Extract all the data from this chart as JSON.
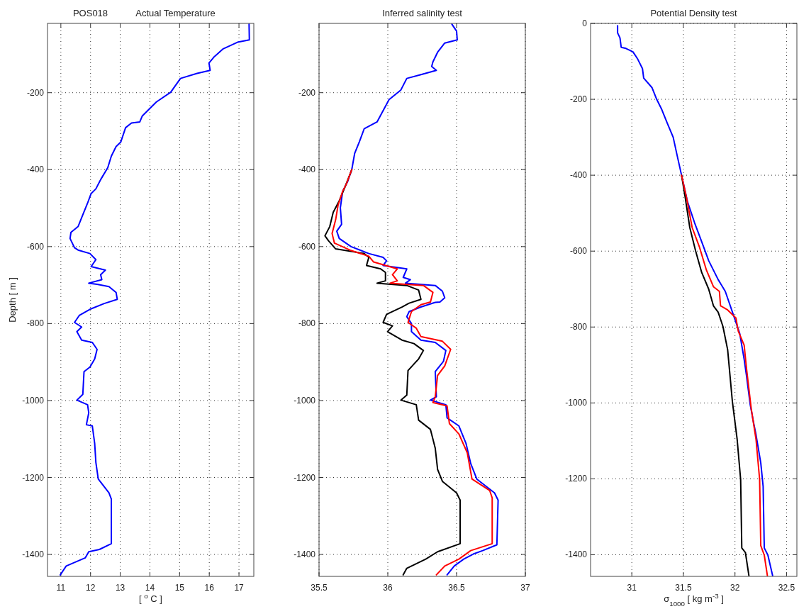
{
  "chart_data": [
    {
      "type": "line",
      "title": "Actual Temperature",
      "annotations": [
        "POS018"
      ],
      "xlabel": "[ $^{o}$ C ]",
      "ylabel": "Depth [ m ]",
      "xlim": [
        10.55,
        17.5
      ],
      "xticks": [
        11,
        12,
        13,
        14,
        15,
        16,
        17
      ],
      "ylim": [
        -1457,
        -20
      ],
      "yticks": [
        -1400,
        -1200,
        -1000,
        -800,
        -600,
        -400,
        -200
      ],
      "grid": true,
      "series": [
        {
          "color": "#0000ff",
          "x": [
            17.34,
            17.35,
            16.95,
            16.47,
            16.15,
            15.99,
            16.03,
            15.59,
            15.03,
            14.7,
            14.22,
            13.74,
            13.66,
            13.38,
            13.18,
            13.02,
            12.86,
            12.7,
            12.58,
            12.34,
            12.18,
            12.02,
            11.9,
            11.74,
            11.58,
            11.34,
            11.31,
            11.46,
            11.58,
            11.98,
            12.18,
            12.02,
            12.5,
            12.34,
            12.38,
            11.94,
            12.22,
            12.62,
            12.86,
            12.9,
            12.46,
            11.98,
            11.62,
            11.46,
            11.7,
            11.54,
            11.7,
            12.06,
            12.22,
            12.14,
            11.98,
            11.78,
            11.74,
            11.54,
            11.9,
            11.94,
            11.86,
            12.06,
            12.14,
            12.18,
            12.26,
            12.62,
            12.7,
            12.7,
            12.3,
            11.94,
            11.82,
            11.18,
            10.98
          ],
          "values": [
            -22,
            -63,
            -69,
            -86,
            -108,
            -123,
            -142,
            -150,
            -163,
            -199,
            -224,
            -261,
            -276,
            -279,
            -291,
            -328,
            -340,
            -365,
            -395,
            -426,
            -450,
            -462,
            -487,
            -517,
            -548,
            -563,
            -579,
            -603,
            -609,
            -618,
            -634,
            -652,
            -661,
            -673,
            -686,
            -695,
            -698,
            -704,
            -719,
            -737,
            -748,
            -763,
            -779,
            -797,
            -809,
            -821,
            -843,
            -849,
            -867,
            -892,
            -913,
            -925,
            -984,
            -999,
            -1011,
            -1032,
            -1063,
            -1066,
            -1112,
            -1161,
            -1204,
            -1240,
            -1256,
            -1372,
            -1387,
            -1393,
            -1409,
            -1430,
            -1453
          ]
        }
      ]
    },
    {
      "type": "line",
      "title": "Inferred salinity test",
      "xlim": [
        35.5,
        37
      ],
      "xticks": [
        35.5,
        36,
        36.5,
        37
      ],
      "ylim": [
        -1457,
        -20
      ],
      "yticks": [
        -1400,
        -1200,
        -1000,
        -800,
        -600,
        -400,
        -200
      ],
      "grid": true,
      "series": [
        {
          "color": "#0000ff",
          "x": [
            36.466,
            36.5,
            36.505,
            36.414,
            36.362,
            36.328,
            36.319,
            36.353,
            36.241,
            36.138,
            36.095,
            36.009,
            35.922,
            35.828,
            35.793,
            35.759,
            35.738,
            35.707,
            35.672,
            35.655,
            35.664,
            35.629,
            35.647,
            35.733,
            35.862,
            35.966,
            35.991,
            35.966,
            36.138,
            36.112,
            36.164,
            36.129,
            36.345,
            36.397,
            36.414,
            36.379,
            36.345,
            36.241,
            36.155,
            36.138,
            36.172,
            36.172,
            36.241,
            36.345,
            36.422,
            36.405,
            36.345,
            36.353,
            36.31,
            36.422,
            36.431,
            36.517,
            36.569,
            36.603,
            36.647,
            36.776,
            36.802,
            36.793,
            36.69,
            36.621,
            36.552,
            36.483,
            36.431
          ],
          "values": [
            -22,
            -40,
            -63,
            -71,
            -95,
            -120,
            -132,
            -142,
            -153,
            -163,
            -193,
            -218,
            -276,
            -294,
            -328,
            -358,
            -400,
            -432,
            -456,
            -499,
            -542,
            -560,
            -579,
            -600,
            -618,
            -628,
            -637,
            -649,
            -658,
            -680,
            -686,
            -695,
            -701,
            -716,
            -733,
            -744,
            -745,
            -757,
            -769,
            -782,
            -800,
            -821,
            -843,
            -849,
            -870,
            -898,
            -925,
            -990,
            -999,
            -1011,
            -1045,
            -1066,
            -1112,
            -1164,
            -1204,
            -1240,
            -1259,
            -1375,
            -1390,
            -1399,
            -1412,
            -1430,
            -1453
          ]
        },
        {
          "color": "#000000",
          "x": [
            35.738,
            35.69,
            35.647,
            35.603,
            35.578,
            35.543,
            35.569,
            35.621,
            35.828,
            35.862,
            35.845,
            35.948,
            35.983,
            35.983,
            35.922,
            36.138,
            36.224,
            36.241,
            36.155,
            36.103,
            35.991,
            35.966,
            36.034,
            35.998,
            36.103,
            36.19,
            36.259,
            36.224,
            36.147,
            36.138,
            36.095,
            36.207,
            36.224,
            36.31,
            36.345,
            36.362,
            36.397,
            36.5,
            36.526,
            36.526,
            36.362,
            36.276,
            36.138,
            36.112
          ],
          "values": [
            -400,
            -444,
            -481,
            -511,
            -548,
            -572,
            -585,
            -606,
            -618,
            -628,
            -649,
            -658,
            -667,
            -689,
            -695,
            -701,
            -713,
            -737,
            -747,
            -757,
            -776,
            -797,
            -806,
            -821,
            -843,
            -852,
            -870,
            -892,
            -922,
            -986,
            -999,
            -1011,
            -1051,
            -1075,
            -1124,
            -1179,
            -1210,
            -1240,
            -1259,
            -1372,
            -1393,
            -1412,
            -1436,
            -1453
          ]
        },
        {
          "color": "#ff0000",
          "x": [
            35.738,
            35.698,
            35.672,
            35.638,
            35.621,
            35.595,
            35.612,
            35.724,
            35.862,
            35.897,
            36.069,
            36.034,
            36.069,
            36.017,
            36.259,
            36.328,
            36.31,
            36.241,
            36.172,
            36.147,
            36.207,
            36.241,
            36.397,
            36.457,
            36.414,
            36.362,
            36.345,
            36.328,
            36.431,
            36.448,
            36.517,
            36.578,
            36.612,
            36.741,
            36.759,
            36.759,
            36.603,
            36.517,
            36.414,
            36.353
          ],
          "values": [
            -400,
            -438,
            -456,
            -493,
            -530,
            -566,
            -591,
            -609,
            -625,
            -640,
            -658,
            -673,
            -689,
            -695,
            -701,
            -719,
            -744,
            -751,
            -769,
            -797,
            -812,
            -834,
            -846,
            -867,
            -910,
            -935,
            -990,
            -1005,
            -1014,
            -1060,
            -1087,
            -1136,
            -1204,
            -1234,
            -1253,
            -1372,
            -1390,
            -1412,
            -1430,
            -1453
          ]
        }
      ]
    },
    {
      "type": "line",
      "title": "Potential Density test",
      "xlabel": "σ$_{1000}$ [ kg m$^{-3}$ ]",
      "xlim": [
        30.6,
        32.6
      ],
      "xticks": [
        31,
        31.5,
        32,
        32.5
      ],
      "ylim": [
        -1457,
        0
      ],
      "yticks": [
        -1400,
        -1200,
        -1000,
        -800,
        -600,
        -400,
        -200,
        0
      ],
      "grid": true,
      "series": [
        {
          "color": "#0000ff",
          "x": [
            30.862,
            30.862,
            30.885,
            30.897,
            30.943,
            31.011,
            31.057,
            31.103,
            31.115,
            31.195,
            31.241,
            31.287,
            31.344,
            31.401,
            31.436,
            31.482,
            31.539,
            31.608,
            31.677,
            31.745,
            31.837,
            31.906,
            32.0,
            32.046,
            32.089,
            32.112,
            32.147,
            32.181,
            32.204,
            32.25,
            32.273,
            32.284,
            32.319,
            32.365
          ],
          "values": [
            -6,
            -25,
            -38,
            -63,
            -66,
            -75,
            -94,
            -119,
            -144,
            -169,
            -200,
            -225,
            -263,
            -300,
            -344,
            -400,
            -469,
            -525,
            -575,
            -625,
            -675,
            -706,
            -780,
            -817,
            -885,
            -929,
            -1003,
            -1053,
            -1084,
            -1158,
            -1220,
            -1382,
            -1401,
            -1455
          ]
        },
        {
          "color": "#000000",
          "x": [
            31.482,
            31.516,
            31.562,
            31.619,
            31.677,
            31.745,
            31.791,
            31.837,
            31.883,
            31.929,
            31.975,
            32.021,
            32.055,
            32.066,
            32.101,
            32.135
          ],
          "values": [
            -400,
            -456,
            -538,
            -600,
            -656,
            -700,
            -744,
            -761,
            -798,
            -860,
            -997,
            -1096,
            -1202,
            -1382,
            -1394,
            -1455
          ]
        },
        {
          "color": "#ff0000",
          "x": [
            31.482,
            31.528,
            31.585,
            31.654,
            31.723,
            31.792,
            31.849,
            31.86,
            31.929,
            32.009,
            32.032,
            32.089,
            32.112,
            32.158,
            32.204,
            32.239,
            32.25,
            32.284,
            32.314
          ],
          "values": [
            -400,
            -456,
            -538,
            -588,
            -650,
            -694,
            -706,
            -744,
            -755,
            -776,
            -811,
            -848,
            -910,
            -1016,
            -1096,
            -1202,
            -1376,
            -1401,
            -1455
          ]
        }
      ]
    }
  ]
}
